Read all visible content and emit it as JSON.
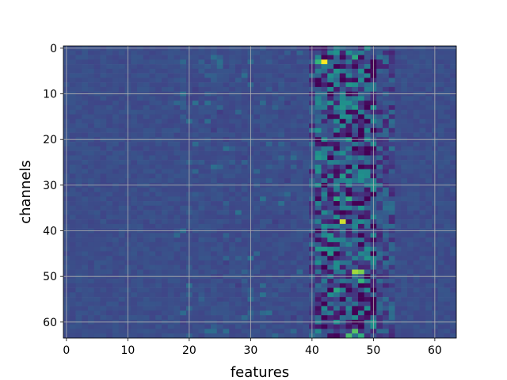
{
  "chart_data": {
    "type": "heatmap",
    "title": "",
    "xlabel": "features",
    "ylabel": "channels",
    "x_range": [
      0,
      63
    ],
    "y_range": [
      0,
      63
    ],
    "y_inverted": true,
    "grid": true,
    "colormap": "viridis",
    "x_ticks": [
      0,
      10,
      20,
      30,
      40,
      50,
      60
    ],
    "y_ticks": [
      0,
      10,
      20,
      30,
      40,
      50,
      60
    ],
    "x_tick_labels": [
      "0",
      "10",
      "20",
      "30",
      "40",
      "50",
      "60"
    ],
    "y_tick_labels": [
      "0",
      "10",
      "20",
      "30",
      "40",
      "50",
      "60"
    ],
    "baseline_value": 0.3,
    "active_feature_columns": [
      40,
      53
    ],
    "hotspots": [
      {
        "feature": 42,
        "channel": 3,
        "value": 1.0
      },
      {
        "feature": 41,
        "channel": 3,
        "value": 0.75
      },
      {
        "feature": 47,
        "channel": 2,
        "value": 0.7
      },
      {
        "feature": 45,
        "channel": 38,
        "value": 0.95
      },
      {
        "feature": 47,
        "channel": 49,
        "value": 0.9
      },
      {
        "feature": 48,
        "channel": 49,
        "value": 0.85
      },
      {
        "feature": 44,
        "channel": 33,
        "value": 0.7
      },
      {
        "feature": 46,
        "channel": 33,
        "value": 0.72
      },
      {
        "feature": 48,
        "channel": 51,
        "value": 0.75
      },
      {
        "feature": 47,
        "channel": 62,
        "value": 0.8
      },
      {
        "feature": 46,
        "channel": 63,
        "value": 0.78
      },
      {
        "feature": 48,
        "channel": 63,
        "value": 0.72
      },
      {
        "feature": 44,
        "channel": 53,
        "value": 0.7
      },
      {
        "feature": 42,
        "channel": 44,
        "value": 0.65
      },
      {
        "feature": 43,
        "channel": 45,
        "value": 0.65
      },
      {
        "feature": 47,
        "channel": 13,
        "value": 0.65
      },
      {
        "feature": 48,
        "channel": 11,
        "value": 0.62
      },
      {
        "feature": 41,
        "channel": 24,
        "value": 0.65
      },
      {
        "feature": 45,
        "channel": 28,
        "value": 0.66
      },
      {
        "feature": 49,
        "channel": 20,
        "value": 0.6
      }
    ],
    "coldspots": [
      {
        "feature": 48,
        "channel": 26,
        "value": 0.0
      },
      {
        "feature": 47,
        "channel": 57,
        "value": 0.02
      },
      {
        "feature": 43,
        "channel": 2,
        "value": 0.05
      },
      {
        "feature": 45,
        "channel": 6,
        "value": 0.05
      },
      {
        "feature": 44,
        "channel": 27,
        "value": 0.04
      },
      {
        "feature": 49,
        "channel": 52,
        "value": 0.03
      },
      {
        "feature": 48,
        "channel": 60,
        "value": 0.05
      },
      {
        "feature": 44,
        "channel": 36,
        "value": 0.06
      },
      {
        "feature": 50,
        "channel": 42,
        "value": 0.05
      }
    ]
  }
}
